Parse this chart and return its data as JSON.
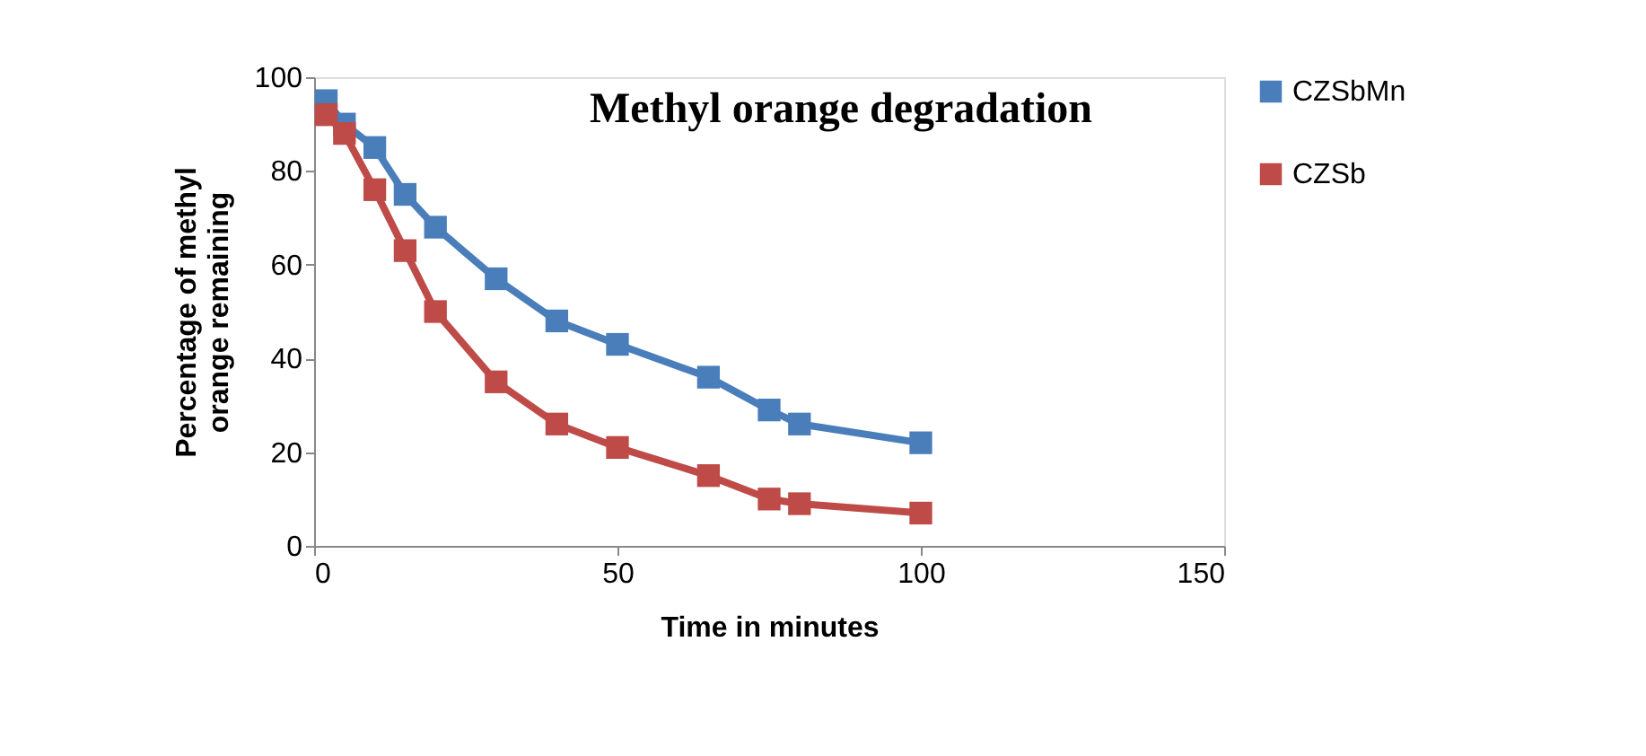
{
  "chart_data": {
    "type": "line",
    "title": "Methyl orange degradation",
    "xlabel": "Time in minutes",
    "ylabel": "Percentage of methyl orange remaining",
    "x": [
      2,
      5,
      10,
      15,
      20,
      30,
      40,
      50,
      65,
      75,
      80,
      100
    ],
    "series": [
      {
        "name": "CZSbMn",
        "color": "#4a7ebb",
        "values": [
          95,
          90,
          85,
          75,
          68,
          57,
          48,
          43,
          36,
          29,
          26,
          22
        ]
      },
      {
        "name": "CZSb",
        "color": "#be4b48",
        "values": [
          92,
          88,
          76,
          63,
          50,
          35,
          26,
          21,
          15,
          10,
          9,
          7
        ]
      }
    ],
    "xlim": [
      0,
      150
    ],
    "xticks": [
      0,
      50,
      100,
      150
    ],
    "ylim": [
      0,
      100
    ],
    "yticks": [
      0,
      20,
      40,
      60,
      80,
      100
    ],
    "grid": false,
    "legend": "right",
    "marker": "square",
    "line_style": "solid"
  }
}
